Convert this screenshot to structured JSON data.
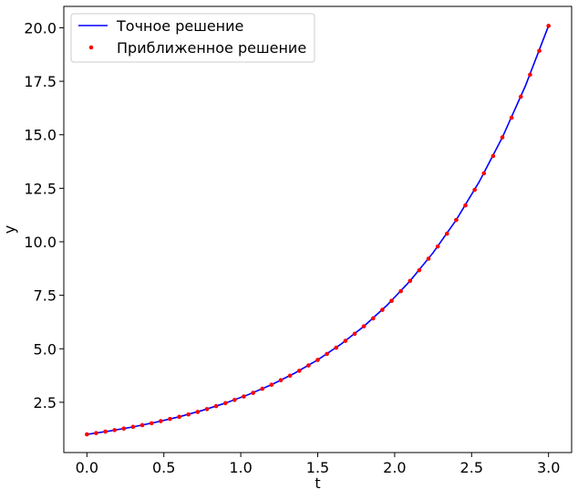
{
  "chart_data": {
    "type": "line",
    "title": "",
    "xlabel": "t",
    "ylabel": "y",
    "xlim": [
      -0.15,
      3.15
    ],
    "ylim": [
      0.15,
      21.0
    ],
    "x_ticks": [
      0.0,
      0.5,
      1.0,
      1.5,
      2.0,
      2.5,
      3.0
    ],
    "x_tick_labels": [
      "0.0",
      "0.5",
      "1.0",
      "1.5",
      "2.0",
      "2.5",
      "3.0"
    ],
    "y_ticks": [
      2.5,
      5.0,
      7.5,
      10.0,
      12.5,
      15.0,
      17.5,
      20.0
    ],
    "y_tick_labels": [
      "2.5",
      "5.0",
      "7.5",
      "10.0",
      "12.5",
      "15.0",
      "17.5",
      "20.0"
    ],
    "grid": false,
    "legend_position": "top-left",
    "series": [
      {
        "name": "Точное решение",
        "style": "line",
        "color": "#0000ff",
        "x": [
          0.0,
          0.15,
          0.3,
          0.45,
          0.6,
          0.75,
          0.9,
          1.05,
          1.2,
          1.35,
          1.5,
          1.65,
          1.8,
          1.95,
          2.1,
          2.25,
          2.4,
          2.55,
          2.7,
          2.85,
          3.0
        ],
        "y": [
          1.0,
          1.16,
          1.35,
          1.57,
          1.82,
          2.12,
          2.46,
          2.86,
          3.32,
          3.86,
          4.48,
          5.21,
          6.05,
          7.03,
          8.17,
          9.49,
          11.02,
          12.81,
          14.88,
          17.29,
          20.09
        ]
      },
      {
        "name": "Приближенное решение",
        "style": "markers",
        "color": "#ff0000",
        "x": [
          0.0,
          0.06,
          0.12,
          0.18,
          0.24,
          0.3,
          0.36,
          0.42,
          0.48,
          0.54,
          0.6,
          0.66,
          0.72,
          0.78,
          0.84,
          0.9,
          0.96,
          1.02,
          1.08,
          1.14,
          1.2,
          1.26,
          1.32,
          1.38,
          1.44,
          1.5,
          1.56,
          1.62,
          1.68,
          1.74,
          1.8,
          1.86,
          1.92,
          1.98,
          2.04,
          2.1,
          2.16,
          2.22,
          2.28,
          2.34,
          2.4,
          2.46,
          2.52,
          2.58,
          2.64,
          2.7,
          2.76,
          2.82,
          2.88,
          2.94,
          3.0
        ],
        "y": [
          1.0,
          1.06,
          1.13,
          1.2,
          1.27,
          1.35,
          1.43,
          1.52,
          1.62,
          1.72,
          1.82,
          1.93,
          2.05,
          2.18,
          2.32,
          2.46,
          2.61,
          2.77,
          2.94,
          3.13,
          3.32,
          3.53,
          3.74,
          3.97,
          4.22,
          4.48,
          4.76,
          5.05,
          5.37,
          5.7,
          6.05,
          6.42,
          6.82,
          7.24,
          7.69,
          8.17,
          8.67,
          9.21,
          9.78,
          10.38,
          11.02,
          11.7,
          12.43,
          13.2,
          14.01,
          14.88,
          15.8,
          16.78,
          17.81,
          18.92,
          20.09
        ]
      }
    ]
  }
}
